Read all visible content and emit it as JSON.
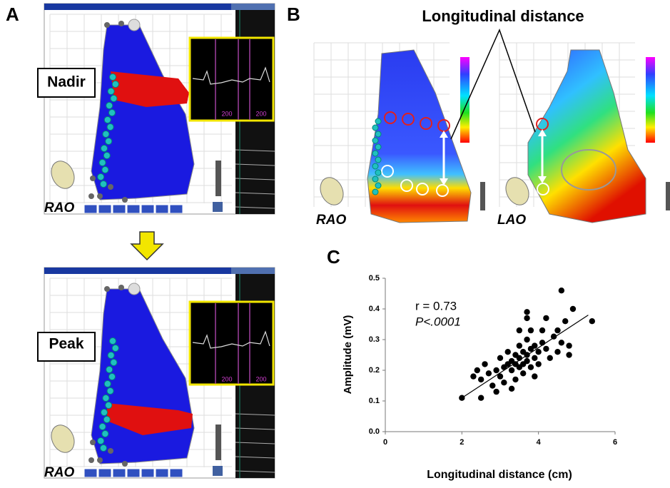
{
  "panel_a": {
    "label": "A",
    "top": {
      "phase": "Nadir",
      "view": "RAO",
      "inset_labels": [
        "200",
        "200"
      ]
    },
    "bottom": {
      "phase": "Peak",
      "view": "RAO",
      "inset_labels": [
        "200",
        "200"
      ]
    }
  },
  "panel_b": {
    "label": "B",
    "title": "Longitudinal distance",
    "views": [
      "RAO",
      "LAO"
    ]
  },
  "panel_c": {
    "label": "C"
  },
  "chart_data": {
    "type": "scatter",
    "xlabel": "Longitudinal distance (cm)",
    "ylabel": "Amplitude (mV)",
    "annotations": [
      "r = 0.73",
      "P<.0001"
    ],
    "color": "#000000",
    "xlim": [
      0,
      6
    ],
    "xticks": [
      0,
      2,
      4,
      6
    ],
    "ylim": [
      0,
      0.5
    ],
    "yticks": [
      {
        "value": 0,
        "label": "0.0"
      },
      0.1,
      0.2,
      0.3,
      0.4,
      0.5
    ],
    "x": [
      2.0,
      2.5,
      2.5,
      2.6,
      2.7,
      2.8,
      2.9,
      2.9,
      3.0,
      3.0,
      3.1,
      3.1,
      3.2,
      3.2,
      3.3,
      3.3,
      3.3,
      3.4,
      3.4,
      3.4,
      3.5,
      3.5,
      3.5,
      3.5,
      3.6,
      3.6,
      3.6,
      3.7,
      3.7,
      3.7,
      3.7,
      3.7,
      3.8,
      3.8,
      3.8,
      3.9,
      3.9,
      3.9,
      4.0,
      4.0,
      4.1,
      4.1,
      4.2,
      4.2,
      4.3,
      4.4,
      4.5,
      4.5,
      4.6,
      4.6,
      4.7,
      4.8,
      4.8,
      4.9,
      5.4,
      2.3,
      2.4
    ],
    "values": [
      0.11,
      0.11,
      0.17,
      0.22,
      0.19,
      0.15,
      0.13,
      0.2,
      0.18,
      0.24,
      0.21,
      0.16,
      0.22,
      0.26,
      0.2,
      0.23,
      0.14,
      0.22,
      0.25,
      0.17,
      0.21,
      0.24,
      0.28,
      0.33,
      0.22,
      0.26,
      0.19,
      0.23,
      0.25,
      0.3,
      0.37,
      0.39,
      0.27,
      0.33,
      0.21,
      0.24,
      0.28,
      0.18,
      0.22,
      0.26,
      0.29,
      0.33,
      0.27,
      0.37,
      0.24,
      0.31,
      0.26,
      0.33,
      0.46,
      0.29,
      0.36,
      0.25,
      0.28,
      0.4,
      0.36,
      0.18,
      0.2
    ],
    "trendline": {
      "x": [
        2,
        5.3
      ],
      "values": [
        0.11,
        0.38
      ]
    }
  }
}
